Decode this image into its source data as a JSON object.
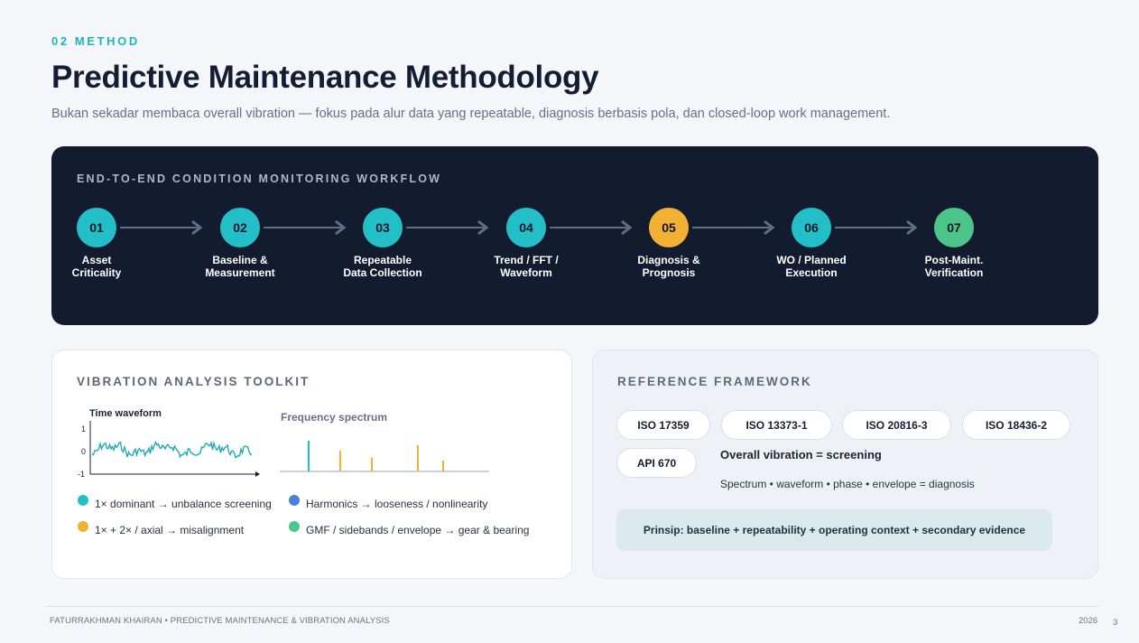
{
  "header": {
    "eyebrow": "02 METHOD",
    "title": "Predictive Maintenance Methodology",
    "subtitle": "Bukan sekadar membaca overall vibration — fokus pada alur data yang repeatable, diagnosis berbasis pola, dan closed-loop work management."
  },
  "workflow": {
    "title": "END-TO-END CONDITION MONITORING WORKFLOW",
    "steps": [
      {
        "number": "01",
        "label": "Asset\nCriticality",
        "color": "#22bfc9"
      },
      {
        "number": "02",
        "label": "Baseline &\nMeasurement",
        "color": "#22bfc9"
      },
      {
        "number": "03",
        "label": "Repeatable\nData Collection",
        "color": "#22bfc9"
      },
      {
        "number": "04",
        "label": "Trend / FFT /\nWaveform",
        "color": "#22bfc9"
      },
      {
        "number": "05",
        "label": "Diagnosis &\nPrognosis",
        "color": "#f2b035"
      },
      {
        "number": "06",
        "label": "WO / Planned\nExecution",
        "color": "#22bfc9"
      },
      {
        "number": "07",
        "label": "Post-Maint.\nVerification",
        "color": "#4cc58a"
      }
    ]
  },
  "toolkit": {
    "title": "VIBRATION ANALYSIS TOOLKIT",
    "waveform_title": "Time waveform",
    "waveform_ticks": [
      "1",
      "0",
      "-1"
    ],
    "spectrum_title": "Frequency spectrum",
    "legend": [
      {
        "text": "1× dominant → unbalance screening",
        "color": "#22bfc9"
      },
      {
        "text": "Harmonics → looseness / nonlinearity",
        "color": "#4a7fd6"
      },
      {
        "text": "1× + 2× / axial → misalignment",
        "color": "#f2b035"
      },
      {
        "text": "GMF / sidebands / envelope → gear & bearing",
        "color": "#4cc58a"
      }
    ]
  },
  "reference": {
    "title": "REFERENCE FRAMEWORK",
    "pills": [
      "ISO 17359",
      "ISO 13373-1",
      "ISO 20816-3",
      "ISO 18436-2",
      "API 670"
    ],
    "screening": "Overall vibration = screening",
    "diagnosis": "Spectrum • waveform • phase • envelope = diagnosis",
    "principle": "Prinsip: baseline + repeatability + operating context + secondary evidence"
  },
  "footer": {
    "left": "FATURRAKHMAN KHAIRAN  •  PREDICTIVE MAINTENANCE & VIBRATION ANALYSIS",
    "year": "2026",
    "page": "3"
  }
}
